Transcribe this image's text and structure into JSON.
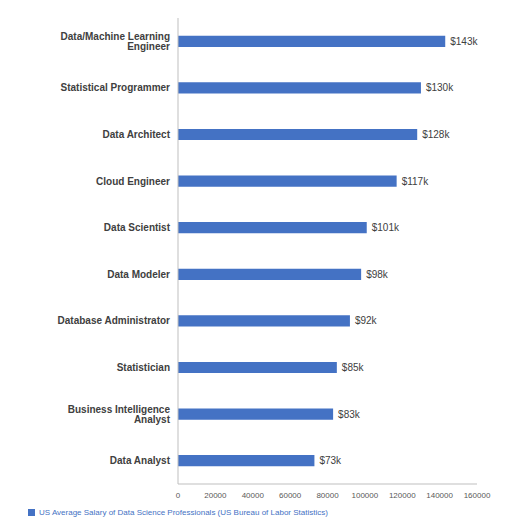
{
  "chart_data": {
    "type": "bar",
    "orientation": "horizontal",
    "categories": [
      "Data/Machine Learning Engineer",
      "Statistical Programmer",
      "Data Architect",
      "Cloud Engineer",
      "Data Scientist",
      "Data Modeler",
      "Database Administrator",
      "Statistician",
      "Business Intelligence Analyst",
      "Data Analyst"
    ],
    "series": [
      {
        "name": "US Average Salary of Data Science Professionals (US Bureau of Labor Statistics)",
        "color": "#4472c4",
        "values": [
          143000,
          130000,
          128000,
          117000,
          101000,
          98000,
          92000,
          85000,
          83000,
          73000
        ],
        "value_labels": [
          "$143k",
          "$130k",
          "$128k",
          "$117k",
          "$101k",
          "$98k",
          "$92k",
          "$85k",
          "$83k",
          "$73k"
        ]
      }
    ],
    "xlim": [
      0,
      160000
    ],
    "xticks": [
      0,
      20000,
      40000,
      60000,
      80000,
      100000,
      120000,
      140000,
      160000
    ],
    "grid": false,
    "legend": "bottom",
    "data_labels": true
  }
}
